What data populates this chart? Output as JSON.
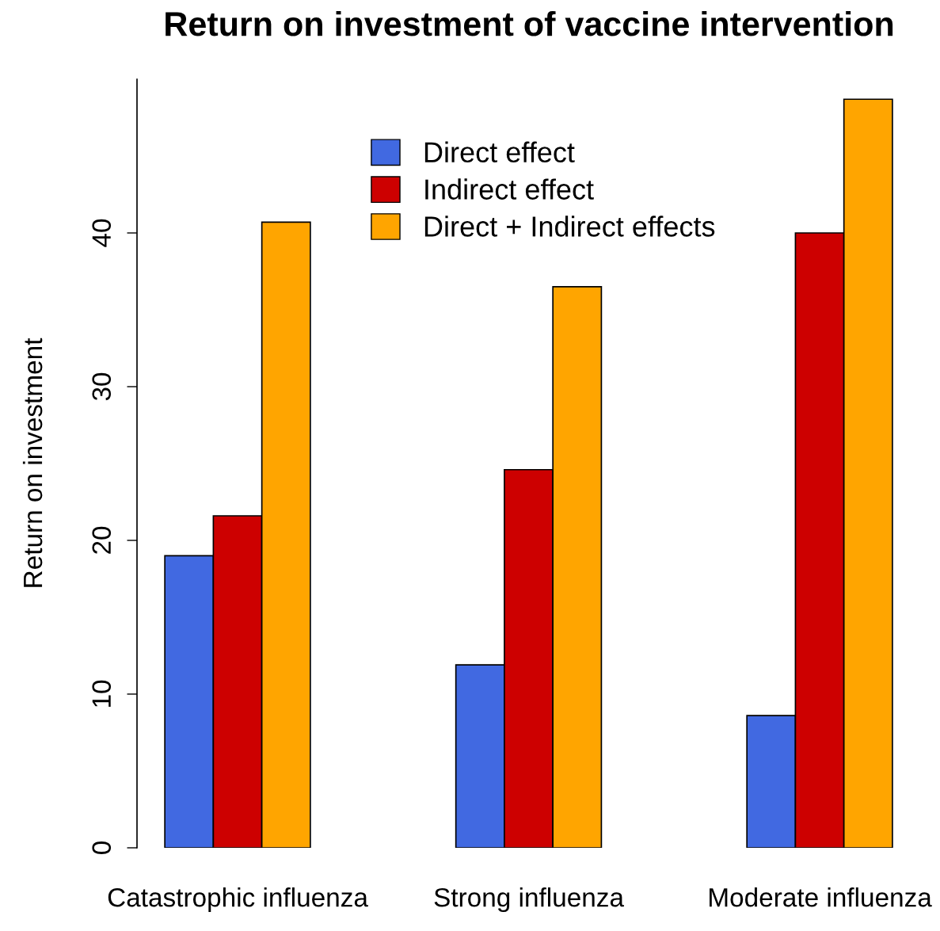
{
  "chart_data": {
    "type": "bar",
    "title": "Return on investment of vaccine intervention",
    "ylabel": "Return on investment",
    "categories": [
      "Catastrophic influenza",
      "Strong influenza",
      "Moderate influenza"
    ],
    "series": [
      {
        "name": "Direct effect",
        "color": "#4169e1",
        "values": [
          19.0,
          11.9,
          8.6
        ]
      },
      {
        "name": "Indirect effect",
        "color": "#cd0000",
        "values": [
          21.6,
          24.6,
          40.0
        ]
      },
      {
        "name": "Direct + Indirect effects",
        "color": "#ffa500",
        "values": [
          40.7,
          36.5,
          48.7
        ]
      }
    ],
    "ylim": [
      0,
      50
    ],
    "yticks": [
      0,
      10,
      20,
      30,
      40
    ],
    "grid": false,
    "legend": "top"
  }
}
